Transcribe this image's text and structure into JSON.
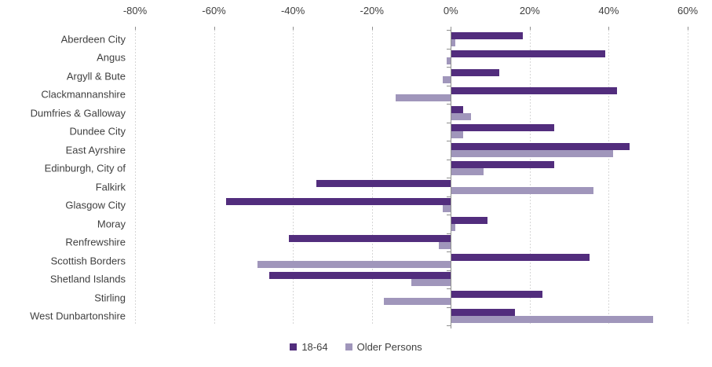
{
  "chart_data": {
    "type": "bar",
    "orientation": "horizontal",
    "categories": [
      "Aberdeen City",
      "Angus",
      "Argyll & Bute",
      "Clackmannanshire",
      "Dumfries & Galloway",
      "Dundee City",
      "East Ayrshire",
      "Edinburgh, City of",
      "Falkirk",
      "Glasgow City",
      "Moray",
      "Renfrewshire",
      "Scottish Borders",
      "Shetland Islands",
      "Stirling",
      "West Dunbartonshire"
    ],
    "series": [
      {
        "name": "18-64",
        "color": "#522d7d",
        "values": [
          18,
          39,
          12,
          42,
          3,
          26,
          45,
          26,
          -34,
          -57,
          9,
          -41,
          35,
          -46,
          23,
          16
        ]
      },
      {
        "name": "Older Persons",
        "color": "#a096bb",
        "values": [
          1,
          -1,
          -2,
          -14,
          5,
          3,
          41,
          8,
          36,
          -2,
          1,
          -3,
          -49,
          -10,
          -17,
          51
        ]
      }
    ],
    "axis": {
      "min": -80,
      "max": 60,
      "step": 20,
      "tick_labels": [
        "-80%",
        "-60%",
        "-40%",
        "-20%",
        "0%",
        "20%",
        "40%",
        "60%"
      ],
      "label_position": "top",
      "grid": "dashed-vertical"
    },
    "legend_position": "bottom-center",
    "colors": {
      "grid": "#d6d6d6",
      "axis": "#8f8f8f",
      "text": "#3f3f3f",
      "background": "#ffffff"
    }
  }
}
